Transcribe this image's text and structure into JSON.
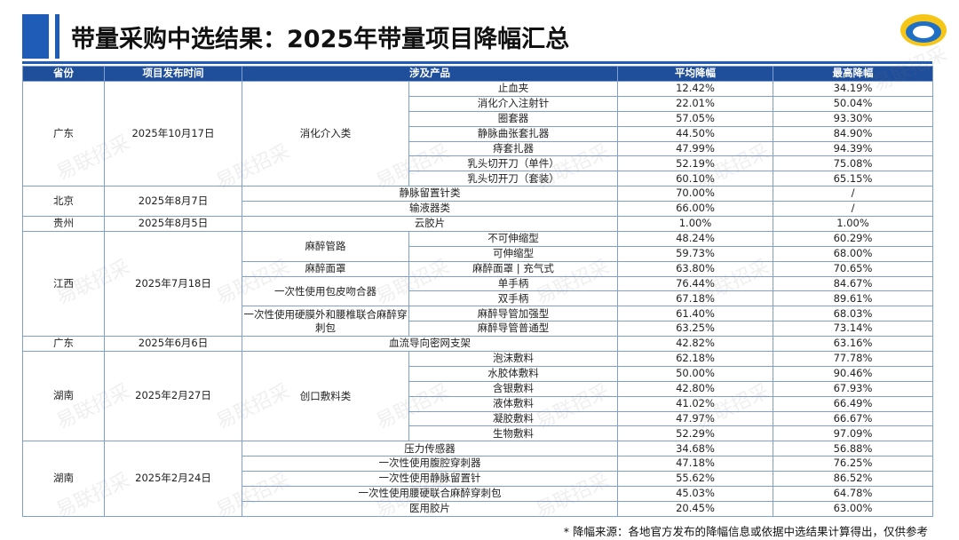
{
  "header": {
    "title": "带量采购中选结果：2025年带量项目降幅汇总"
  },
  "watermark": "易联招采",
  "table": {
    "headers": [
      "省份",
      "项目发布时间",
      "涉及产品",
      "平均降幅",
      "最高降幅"
    ],
    "groups": [
      {
        "province": "广东",
        "date": "2025年10月17日",
        "categories": [
          {
            "name": "消化介入类",
            "products": [
              {
                "name": "止血夹",
                "avg": "12.42%",
                "max": "34.19%"
              },
              {
                "name": "消化介入注射针",
                "avg": "22.01%",
                "max": "50.04%"
              },
              {
                "name": "圈套器",
                "avg": "57.05%",
                "max": "93.30%"
              },
              {
                "name": "静脉曲张套扎器",
                "avg": "44.50%",
                "max": "84.90%"
              },
              {
                "name": "痔套扎器",
                "avg": "47.99%",
                "max": "94.39%"
              },
              {
                "name": "乳头切开刀（单件）",
                "avg": "52.19%",
                "max": "75.08%"
              },
              {
                "name": "乳头切开刀（套装）",
                "avg": "60.10%",
                "max": "65.15%"
              }
            ]
          }
        ]
      },
      {
        "province": "北京",
        "date": "2025年8月7日",
        "categories": [
          {
            "products": [
              {
                "name": "静脉留置针类",
                "avg": "70.00%",
                "max": "/"
              },
              {
                "name": "输液器类",
                "avg": "66.00%",
                "max": "/"
              }
            ]
          }
        ]
      },
      {
        "province": "贵州",
        "date": "2025年8月5日",
        "categories": [
          {
            "products": [
              {
                "name": "云胶片",
                "avg": "1.00%",
                "max": "1.00%"
              }
            ]
          }
        ]
      },
      {
        "province": "江西",
        "date": "2025年7月18日",
        "categories": [
          {
            "name": "麻醉管路",
            "products": [
              {
                "name": "不可伸缩型",
                "avg": "48.24%",
                "max": "60.29%"
              },
              {
                "name": "可伸缩型",
                "avg": "59.73%",
                "max": "68.00%"
              }
            ]
          },
          {
            "name": "麻醉面罩",
            "products": [
              {
                "name": "麻醉面罩 | 充气式",
                "avg": "63.80%",
                "max": "70.65%"
              }
            ]
          },
          {
            "name": "一次性使用包皮吻合器",
            "products": [
              {
                "name": "单手柄",
                "avg": "76.44%",
                "max": "84.67%"
              },
              {
                "name": "双手柄",
                "avg": "67.18%",
                "max": "89.61%"
              }
            ]
          },
          {
            "name": "一次性使用硬膜外和腰椎联合麻醉穿刺包",
            "products": [
              {
                "name": "麻醉导管加强型",
                "avg": "61.40%",
                "max": "68.03%"
              },
              {
                "name": "麻醉导管普通型",
                "avg": "63.25%",
                "max": "73.14%"
              }
            ]
          }
        ]
      },
      {
        "province": "广东",
        "date": "2025年6月6日",
        "categories": [
          {
            "products": [
              {
                "name": "血流导向密网支架",
                "avg": "42.82%",
                "max": "63.16%"
              }
            ]
          }
        ]
      },
      {
        "province": "湖南",
        "date": "2025年2月27日",
        "categories": [
          {
            "name": "创口敷料类",
            "products": [
              {
                "name": "泡沫敷料",
                "avg": "62.18%",
                "max": "77.78%"
              },
              {
                "name": "水胶体敷料",
                "avg": "50.00%",
                "max": "90.46%"
              },
              {
                "name": "含银敷料",
                "avg": "42.80%",
                "max": "67.93%"
              },
              {
                "name": "液体敷料",
                "avg": "41.02%",
                "max": "66.49%"
              },
              {
                "name": "凝胶敷料",
                "avg": "47.97%",
                "max": "66.67%"
              },
              {
                "name": "生物敷料",
                "avg": "52.29%",
                "max": "97.09%"
              }
            ]
          }
        ]
      },
      {
        "province": "湖南",
        "date": "2025年2月24日",
        "categories": [
          {
            "products": [
              {
                "name": "压力传感器",
                "avg": "34.68%",
                "max": "56.88%"
              },
              {
                "name": "一次性使用腹腔穿刺器",
                "avg": "47.18%",
                "max": "76.25%"
              },
              {
                "name": "一次性使用静脉留置针",
                "avg": "55.62%",
                "max": "86.52%"
              },
              {
                "name": "一次性使用腰硬联合麻醉穿刺包",
                "avg": "45.03%",
                "max": "64.78%"
              },
              {
                "name": "医用胶片",
                "avg": "20.45%",
                "max": "63.00%"
              }
            ]
          }
        ]
      }
    ]
  },
  "footnote": "* 降幅来源：各地官方发布的降幅信息或依据中选结果计算得出，仅供参考"
}
